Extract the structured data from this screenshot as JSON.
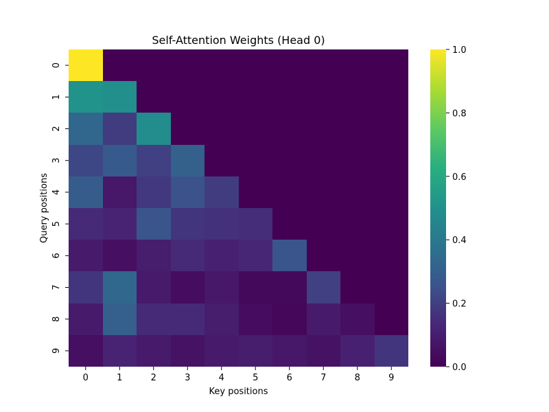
{
  "chart_data": {
    "type": "heatmap",
    "title": "Self-Attention Weights (Head 0)",
    "xlabel": "Key positions",
    "ylabel": "Query positions",
    "x_categories": [
      "0",
      "1",
      "2",
      "3",
      "4",
      "5",
      "6",
      "7",
      "8",
      "9"
    ],
    "y_categories": [
      "0",
      "1",
      "2",
      "3",
      "4",
      "5",
      "6",
      "7",
      "8",
      "9"
    ],
    "colormap": "viridis",
    "colorbar": {
      "min": 0.0,
      "max": 1.0,
      "ticks": [
        "0.0",
        "0.2",
        "0.4",
        "0.6",
        "0.8",
        "1.0"
      ]
    },
    "values": [
      [
        1.0,
        0.0,
        0.0,
        0.0,
        0.0,
        0.0,
        0.0,
        0.0,
        0.0,
        0.0
      ],
      [
        0.51,
        0.49,
        0.0,
        0.0,
        0.0,
        0.0,
        0.0,
        0.0,
        0.0,
        0.0
      ],
      [
        0.33,
        0.19,
        0.48,
        0.0,
        0.0,
        0.0,
        0.0,
        0.0,
        0.0,
        0.0
      ],
      [
        0.22,
        0.28,
        0.2,
        0.31,
        0.0,
        0.0,
        0.0,
        0.0,
        0.0,
        0.0
      ],
      [
        0.29,
        0.08,
        0.18,
        0.25,
        0.19,
        0.0,
        0.0,
        0.0,
        0.0,
        0.0
      ],
      [
        0.14,
        0.12,
        0.26,
        0.17,
        0.16,
        0.15,
        0.0,
        0.0,
        0.0,
        0.0
      ],
      [
        0.09,
        0.05,
        0.1,
        0.14,
        0.11,
        0.13,
        0.26,
        0.0,
        0.0,
        0.0
      ],
      [
        0.17,
        0.33,
        0.09,
        0.04,
        0.08,
        0.03,
        0.03,
        0.2,
        0.0,
        0.0
      ],
      [
        0.09,
        0.3,
        0.14,
        0.14,
        0.1,
        0.04,
        0.02,
        0.09,
        0.05,
        0.0
      ],
      [
        0.05,
        0.12,
        0.09,
        0.06,
        0.09,
        0.1,
        0.08,
        0.06,
        0.11,
        0.17
      ]
    ]
  }
}
